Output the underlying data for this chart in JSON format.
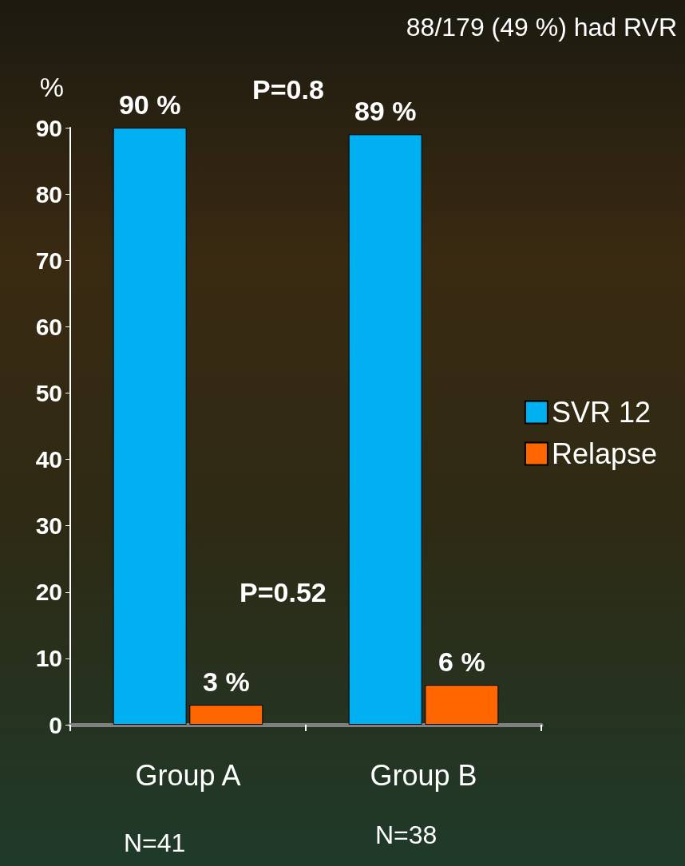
{
  "chart_data": {
    "type": "bar",
    "ylabel": "%",
    "categories": [
      "Group A",
      "Group B"
    ],
    "series": [
      {
        "name": "SVR 12",
        "color": "#00b0f0",
        "values": [
          90,
          89
        ],
        "value_labels": [
          "90 %",
          "89 %"
        ]
      },
      {
        "name": "Relapse",
        "color": "#ff6600",
        "values": [
          3,
          6
        ],
        "value_labels": [
          "3 %",
          "6 %"
        ]
      }
    ],
    "ylim": [
      0,
      90
    ],
    "yticks": [
      0,
      10,
      20,
      30,
      40,
      50,
      60,
      70,
      80,
      90
    ],
    "grid": false,
    "legend": "right",
    "annotations": [
      "88/179 (49 %) had RVR",
      "P=0.8",
      "P=0.52",
      "N=41",
      "N=38"
    ]
  }
}
